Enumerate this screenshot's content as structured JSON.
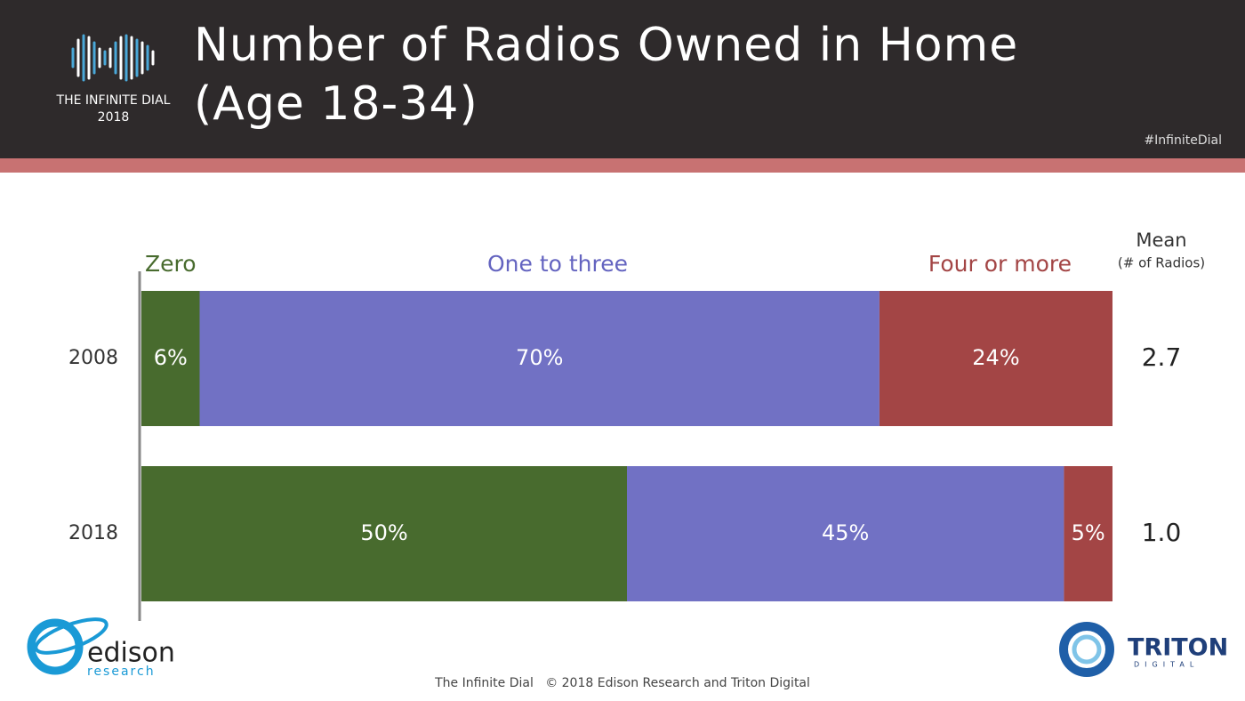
{
  "header": {
    "brand": "THE INFINITE DIAL",
    "brand_year": "2018",
    "hashtag": "#InfiniteDial"
  },
  "chart_data": {
    "type": "stacked-bar-horizontal",
    "title": "Number of Radios Owned in Home (Age 18-34)",
    "categories": [
      "2008",
      "2018"
    ],
    "xlim": [
      0,
      100
    ],
    "series": [
      {
        "name": "Zero",
        "color": "#486b2e",
        "values": [
          6,
          50
        ],
        "value_labels": [
          "6%",
          "50%"
        ]
      },
      {
        "name": "One to three",
        "color": "#7171c4",
        "values": [
          70,
          45
        ],
        "value_labels": [
          "70%",
          "45%"
        ]
      },
      {
        "name": "Four or more",
        "color": "#a34545",
        "values": [
          24,
          5
        ],
        "value_labels": [
          "24%",
          "5%"
        ]
      }
    ],
    "mean": {
      "title": "Mean",
      "subtitle": "(# of Radios)",
      "values": [
        2.7,
        1.0
      ],
      "value_labels": [
        "2.7",
        "1.0"
      ]
    }
  },
  "footer": {
    "text": "The Infinite Dial   © 2018 Edison Research and Triton Digital"
  },
  "logos": {
    "edison": "edison",
    "edison_sub": "research",
    "triton": "TRITON",
    "triton_sub": "DIGITAL"
  }
}
